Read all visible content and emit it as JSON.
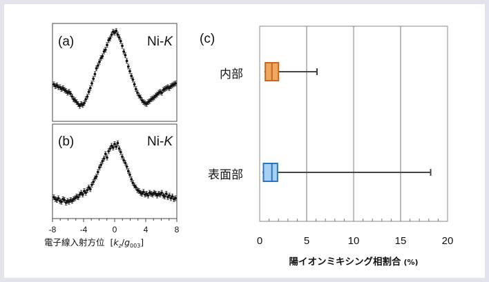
{
  "chart_data": [
    {
      "type": "scatter",
      "panel_label": "(a)",
      "series_label": "Ni-",
      "series_label_italic": "K",
      "x_ticks": [
        "-8",
        "-4",
        "0",
        "4",
        "8"
      ],
      "xlim": [
        -8,
        8
      ],
      "ylim": [
        0,
        1
      ],
      "points": [
        [
          -8,
          0.38
        ],
        [
          -7.8,
          0.36
        ],
        [
          -7.6,
          0.37
        ],
        [
          -7.4,
          0.35
        ],
        [
          -7.2,
          0.35
        ],
        [
          -7,
          0.33
        ],
        [
          -6.8,
          0.34
        ],
        [
          -6.6,
          0.32
        ],
        [
          -6.4,
          0.31
        ],
        [
          -6.2,
          0.29
        ],
        [
          -6,
          0.3
        ],
        [
          -5.8,
          0.28
        ],
        [
          -5.6,
          0.25
        ],
        [
          -5.4,
          0.22
        ],
        [
          -5.2,
          0.21
        ],
        [
          -5,
          0.19
        ],
        [
          -4.8,
          0.17
        ],
        [
          -4.6,
          0.15
        ],
        [
          -4.4,
          0.17
        ],
        [
          -4.2,
          0.16
        ],
        [
          -4,
          0.18
        ],
        [
          -3.8,
          0.22
        ],
        [
          -3.6,
          0.25
        ],
        [
          -3.4,
          0.3
        ],
        [
          -3.2,
          0.34
        ],
        [
          -3,
          0.39
        ],
        [
          -2.8,
          0.44
        ],
        [
          -2.6,
          0.49
        ],
        [
          -2.4,
          0.55
        ],
        [
          -2.2,
          0.58
        ],
        [
          -2,
          0.62
        ],
        [
          -1.8,
          0.66
        ],
        [
          -1.6,
          0.68
        ],
        [
          -1.4,
          0.73
        ],
        [
          -1.2,
          0.75
        ],
        [
          -1,
          0.8
        ],
        [
          -0.8,
          0.85
        ],
        [
          -0.6,
          0.87
        ],
        [
          -0.4,
          0.91
        ],
        [
          -0.2,
          0.94
        ],
        [
          0,
          0.93
        ],
        [
          0.2,
          0.95
        ],
        [
          0.4,
          0.91
        ],
        [
          0.6,
          0.88
        ],
        [
          0.8,
          0.84
        ],
        [
          1,
          0.79
        ],
        [
          1.2,
          0.73
        ],
        [
          1.4,
          0.69
        ],
        [
          1.6,
          0.63
        ],
        [
          1.8,
          0.57
        ],
        [
          2,
          0.52
        ],
        [
          2.2,
          0.47
        ],
        [
          2.4,
          0.43
        ],
        [
          2.6,
          0.38
        ],
        [
          2.8,
          0.33
        ],
        [
          3,
          0.29
        ],
        [
          3.2,
          0.26
        ],
        [
          3.4,
          0.24
        ],
        [
          3.6,
          0.21
        ],
        [
          3.8,
          0.19
        ],
        [
          4,
          0.18
        ],
        [
          4.2,
          0.17
        ],
        [
          4.4,
          0.19
        ],
        [
          4.6,
          0.2
        ],
        [
          4.8,
          0.22
        ],
        [
          5,
          0.23
        ],
        [
          5.2,
          0.24
        ],
        [
          5.4,
          0.26
        ],
        [
          5.6,
          0.27
        ],
        [
          5.8,
          0.29
        ],
        [
          6,
          0.3
        ],
        [
          6.2,
          0.29
        ],
        [
          6.4,
          0.32
        ],
        [
          6.6,
          0.33
        ],
        [
          6.8,
          0.34
        ],
        [
          7,
          0.35
        ],
        [
          7.2,
          0.34
        ],
        [
          7.4,
          0.36
        ],
        [
          7.6,
          0.37
        ],
        [
          7.8,
          0.38
        ],
        [
          8,
          0.39
        ]
      ]
    },
    {
      "type": "scatter",
      "panel_label": "(b)",
      "series_label": "Ni-",
      "series_label_italic": "K",
      "x_ticks": [
        "-8",
        "-4",
        "0",
        "4",
        "8"
      ],
      "xlim": [
        -8,
        8
      ],
      "ylim": [
        0,
        1
      ],
      "points": [
        [
          -8,
          0.22
        ],
        [
          -7.8,
          0.2
        ],
        [
          -7.6,
          0.19
        ],
        [
          -7.4,
          0.21
        ],
        [
          -7.2,
          0.18
        ],
        [
          -7,
          0.17
        ],
        [
          -6.8,
          0.2
        ],
        [
          -6.6,
          0.19
        ],
        [
          -6.4,
          0.16
        ],
        [
          -6.2,
          0.18
        ],
        [
          -6,
          0.17
        ],
        [
          -5.8,
          0.19
        ],
        [
          -5.6,
          0.18
        ],
        [
          -5.4,
          0.2
        ],
        [
          -5.2,
          0.21
        ],
        [
          -5,
          0.23
        ],
        [
          -4.8,
          0.22
        ],
        [
          -4.6,
          0.25
        ],
        [
          -4.4,
          0.27
        ],
        [
          -4.2,
          0.25
        ],
        [
          -4,
          0.29
        ],
        [
          -3.8,
          0.27
        ],
        [
          -3.6,
          0.3
        ],
        [
          -3.4,
          0.33
        ],
        [
          -3.2,
          0.31
        ],
        [
          -3,
          0.36
        ],
        [
          -2.8,
          0.39
        ],
        [
          -2.6,
          0.43
        ],
        [
          -2.4,
          0.45
        ],
        [
          -2.2,
          0.5
        ],
        [
          -2,
          0.55
        ],
        [
          -1.8,
          0.58
        ],
        [
          -1.6,
          0.62
        ],
        [
          -1.4,
          0.65
        ],
        [
          -1.2,
          0.7
        ],
        [
          -1,
          0.66
        ],
        [
          -0.8,
          0.73
        ],
        [
          -0.6,
          0.76
        ],
        [
          -0.4,
          0.79
        ],
        [
          -0.2,
          0.77
        ],
        [
          0,
          0.81
        ],
        [
          0.2,
          0.78
        ],
        [
          0.4,
          0.82
        ],
        [
          0.6,
          0.76
        ],
        [
          0.8,
          0.72
        ],
        [
          1,
          0.67
        ],
        [
          1.2,
          0.63
        ],
        [
          1.4,
          0.6
        ],
        [
          1.6,
          0.56
        ],
        [
          1.8,
          0.51
        ],
        [
          2,
          0.47
        ],
        [
          2.2,
          0.42
        ],
        [
          2.4,
          0.38
        ],
        [
          2.6,
          0.35
        ],
        [
          2.8,
          0.33
        ],
        [
          3,
          0.3
        ],
        [
          3.2,
          0.29
        ],
        [
          3.4,
          0.27
        ],
        [
          3.6,
          0.26
        ],
        [
          3.8,
          0.28
        ],
        [
          4,
          0.25
        ],
        [
          4.2,
          0.26
        ],
        [
          4.4,
          0.24
        ],
        [
          4.6,
          0.27
        ],
        [
          4.8,
          0.26
        ],
        [
          5,
          0.25
        ],
        [
          5.2,
          0.27
        ],
        [
          5.4,
          0.26
        ],
        [
          5.6,
          0.24
        ],
        [
          5.8,
          0.26
        ],
        [
          6,
          0.25
        ],
        [
          6.2,
          0.27
        ],
        [
          6.4,
          0.24
        ],
        [
          6.6,
          0.23
        ],
        [
          6.8,
          0.26
        ],
        [
          7,
          0.22
        ],
        [
          7.2,
          0.24
        ],
        [
          7.4,
          0.21
        ],
        [
          7.6,
          0.23
        ],
        [
          7.8,
          0.2
        ],
        [
          8,
          0.21
        ]
      ]
    },
    {
      "type": "boxplot",
      "panel_label": "(c)",
      "orientation": "horizontal",
      "xlabel": "陽イオンミキシング相割合",
      "xlabel_unit": "(%)",
      "xlim": [
        0,
        20
      ],
      "x_ticks": [
        0,
        5,
        10,
        15,
        20
      ],
      "grid": true,
      "series": [
        {
          "name": "内部",
          "min": 0.5,
          "q1": 0.6,
          "median": 1.3,
          "q3": 2.0,
          "max": 6.1,
          "color": "#f0a860",
          "stroke": "#c8661e"
        },
        {
          "name": "表面部",
          "min": 0.3,
          "q1": 0.4,
          "median": 1.3,
          "q3": 1.9,
          "max": 18.2,
          "color": "#a8d0f0",
          "stroke": "#2a74c0"
        }
      ]
    }
  ],
  "xaxis_label_jp": "電子線入射方位",
  "xaxis_unit_k": "k",
  "xaxis_unit_k_sub": "z",
  "xaxis_unit_g": "g",
  "xaxis_unit_g_sub": "003"
}
